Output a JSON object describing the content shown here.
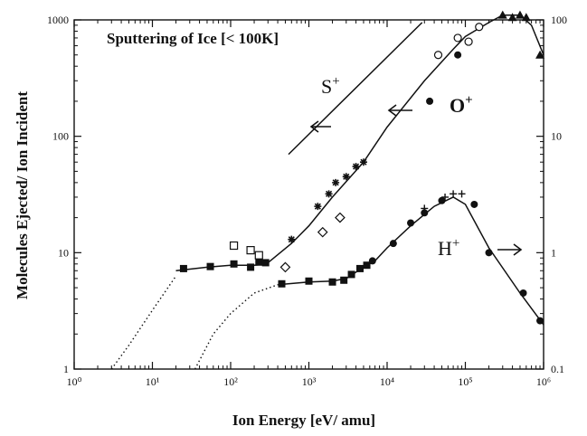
{
  "chart_data": {
    "type": "scatter",
    "title": "Sputtering of Ice  [< 100K]",
    "xlabel": "Ion Energy [eV/ amu]",
    "ylabel": "Molecules Ejected/ Ion Incident",
    "x_scale": "log",
    "y_scale": "log",
    "xlim": [
      1,
      1000000
    ],
    "ylim": [
      1,
      1000
    ],
    "y2lim": [
      0.1,
      100
    ],
    "grid": false,
    "x_tick_labels": [
      "10⁰",
      "10¹",
      "10²",
      "10³",
      "10⁴",
      "10⁵",
      "10⁶"
    ],
    "y_tick_labels": [
      "1",
      "10",
      "100",
      "1000"
    ],
    "y2_tick_labels": [
      "0.1",
      "1",
      "10",
      "100"
    ],
    "annotations": [
      {
        "text": "S",
        "sup": "+"
      },
      {
        "text": "O",
        "sup": "+"
      },
      {
        "text": "H",
        "sup": "+"
      }
    ],
    "series": [
      {
        "name": "",
        "marker": "filled-square",
        "x": [
          25,
          55,
          110,
          180,
          230,
          280
        ],
        "y": [
          7.3,
          7.6,
          8.0,
          7.5,
          8.3,
          8.2
        ]
      },
      {
        "name": "",
        "marker": "filled-square",
        "x": [
          450,
          1000,
          2000,
          2800,
          3500,
          4500,
          5500
        ],
        "y": [
          5.4,
          5.7,
          5.6,
          5.8,
          6.5,
          7.3,
          7.8
        ]
      },
      {
        "name": "",
        "marker": "filled-circle",
        "x": [
          6500,
          12000,
          20000,
          30000,
          50000,
          130000,
          200000,
          550000,
          900000
        ],
        "y": [
          8.5,
          12,
          18,
          22,
          28,
          26,
          10,
          4.5,
          2.6
        ]
      },
      {
        "name": "",
        "marker": "open-square",
        "x": [
          110,
          180,
          230
        ],
        "y": [
          11.5,
          10.5,
          9.5
        ]
      },
      {
        "name": "",
        "marker": "open-diamond",
        "x": [
          500,
          1500,
          2500
        ],
        "y": [
          7.5,
          15,
          20
        ]
      },
      {
        "name": "",
        "marker": "asterisk",
        "x": [
          600,
          1300,
          1800,
          2200,
          3000,
          4000,
          5000
        ],
        "y": [
          13,
          25,
          32,
          40,
          45,
          55,
          60
        ]
      },
      {
        "name": "",
        "marker": "plus",
        "x": [
          30000,
          55000,
          70000,
          90000
        ],
        "y": [
          24,
          30,
          32,
          32
        ]
      },
      {
        "name": "",
        "marker": "filled-circle",
        "x": [
          35000,
          80000
        ],
        "y": [
          200,
          500
        ]
      },
      {
        "name": "",
        "marker": "open-circle",
        "x": [
          45000,
          80000,
          110000,
          150000
        ],
        "y": [
          500,
          700,
          650,
          870
        ]
      },
      {
        "name": "",
        "marker": "filled-triangle",
        "x": [
          300000,
          400000,
          500000,
          600000,
          900000
        ],
        "y": [
          1100,
          1050,
          1100,
          1050,
          500
        ]
      }
    ],
    "lines": [
      {
        "name": "",
        "style": "dotted",
        "x": [
          3,
          5,
          10,
          20
        ],
        "y": [
          1.0,
          1.6,
          3.2,
          6.3
        ]
      },
      {
        "name": "",
        "style": "solid",
        "x": [
          20,
          50,
          100,
          200,
          300
        ],
        "y": [
          7.0,
          7.5,
          7.8,
          7.8,
          8.0
        ]
      },
      {
        "name": "",
        "style": "dotted",
        "x": [
          35,
          60,
          100,
          200,
          400
        ],
        "y": [
          1.0,
          2.0,
          3.0,
          4.5,
          5.3
        ]
      },
      {
        "name": "",
        "style": "solid",
        "x": [
          400,
          1000,
          2000,
          3000,
          5000,
          7000,
          10000,
          20000,
          40000,
          70000,
          100000,
          200000,
          500000,
          1000000
        ],
        "y": [
          5.3,
          5.6,
          5.7,
          6.0,
          7.5,
          8.5,
          11,
          17,
          25,
          30,
          26,
          11,
          4.5,
          2.4
        ]
      },
      {
        "name": "",
        "style": "solid",
        "x": [
          300,
          600,
          1000,
          2000,
          5000,
          10000,
          30000,
          70000,
          100000,
          200000,
          300000,
          500000,
          700000,
          1000000
        ],
        "y": [
          8.2,
          12,
          17,
          30,
          60,
          120,
          300,
          560,
          720,
          950,
          1100,
          1100,
          900,
          500
        ]
      },
      {
        "name": "",
        "style": "solid",
        "x": [
          550,
          28000
        ],
        "y": [
          70,
          950
        ]
      }
    ]
  }
}
